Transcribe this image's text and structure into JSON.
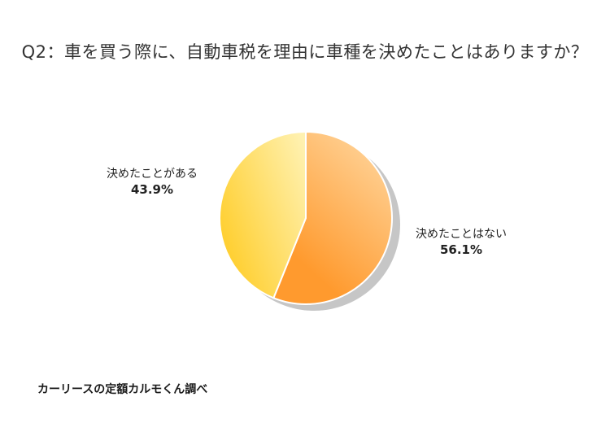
{
  "title": "Q2：車を買う際に、自動車税を理由に車種を決めたことはありますか？",
  "source": "カーリースの定額カルモくん調べ",
  "chart_data": {
    "type": "pie",
    "title": "Q2：車を買う際に、自動車税を理由に車種を決めたことはありますか？",
    "slices": [
      {
        "label": "決めたことはない",
        "value": 56.1,
        "value_label": "56.1%",
        "color_light": "#ffd49a",
        "color_dark": "#ff9a2e"
      },
      {
        "label": "決めたことがある",
        "value": 43.9,
        "value_label": "43.9%",
        "color_light": "#fff1b0",
        "color_dark": "#ffd034"
      }
    ],
    "start": "12 o'clock",
    "direction": "clockwise",
    "legend": "none"
  }
}
